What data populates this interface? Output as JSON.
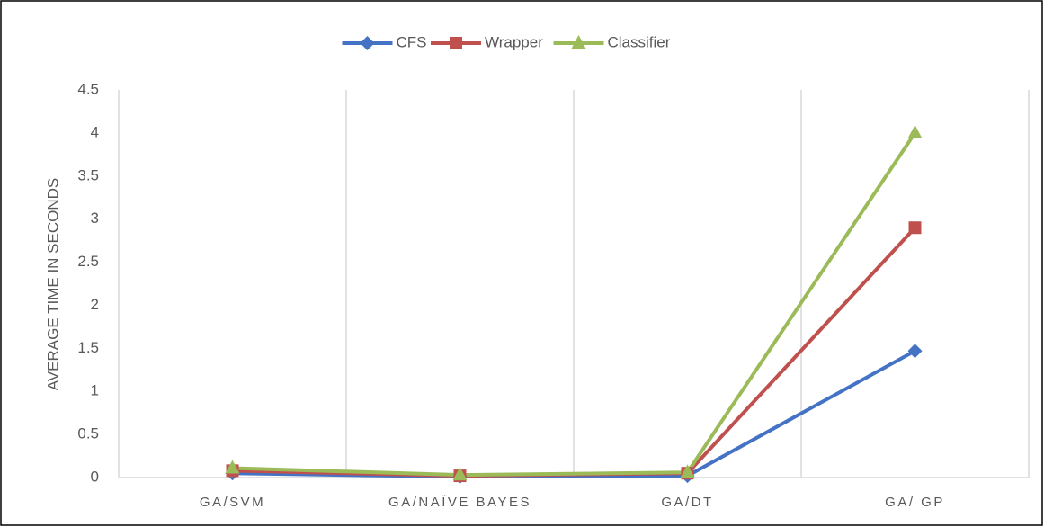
{
  "chart_data": {
    "type": "line",
    "y_label": "AVERAGE TIME IN SECONDS",
    "categories": [
      "GA/SVM",
      "GA/NAÏVE BAYES",
      "GA/DT",
      "GA/ GP"
    ],
    "series": [
      {
        "name": "CFS",
        "color": "#4472c4",
        "marker": "diamond",
        "values": [
          0.05,
          0.01,
          0.02,
          1.47
        ]
      },
      {
        "name": "Wrapper",
        "color": "#c0504d",
        "marker": "square",
        "values": [
          0.08,
          0.02,
          0.05,
          2.9
        ]
      },
      {
        "name": "Classifier",
        "color": "#9bbb59",
        "marker": "triangle",
        "values": [
          0.11,
          0.03,
          0.06,
          4.0
        ]
      }
    ],
    "ylim": [
      0,
      4.5
    ],
    "yticks": [
      0,
      0.5,
      1,
      1.5,
      2,
      2.5,
      3,
      3.5,
      4,
      4.5
    ],
    "grid": true,
    "legend": "top",
    "high_low_lines": true
  }
}
